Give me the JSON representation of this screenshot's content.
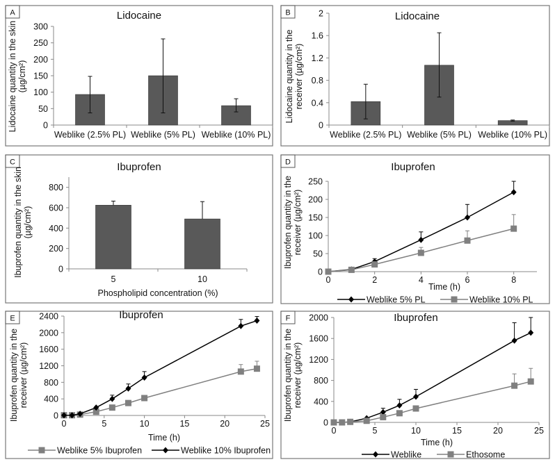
{
  "chart_data": [
    {
      "panel": "A",
      "type": "bar",
      "title": "Lidocaine",
      "ylabel": [
        "Lidocaine quantity in the skin",
        "(µg/cm²)"
      ],
      "xlabel": "",
      "ylim": [
        0,
        300
      ],
      "yticks": [
        "0",
        "50",
        "100",
        "150",
        "200",
        "250",
        "300"
      ],
      "categories": [
        "Weblike (2.5% PL)",
        "Weblike (5% PL)",
        "Weblike (10% PL)"
      ],
      "values": [
        93,
        150,
        59
      ],
      "err_low": [
        37,
        37,
        40
      ],
      "err_high": [
        148,
        262,
        80
      ],
      "bar_color": "#595959"
    },
    {
      "panel": "B",
      "type": "bar",
      "title": "Lidocaine",
      "ylabel": [
        "Lidocaine quantity in the",
        "receiver (µg/cm²)"
      ],
      "xlabel": "",
      "ylim": [
        0,
        2
      ],
      "yticks": [
        "0",
        "0.4",
        "0.8",
        "1.2",
        "1.6",
        "2"
      ],
      "categories": [
        "Weblike (2.5% PL)",
        "Weblike (5% PL)",
        "Weblike (10% PL)"
      ],
      "values": [
        0.42,
        1.07,
        0.08
      ],
      "err_low": [
        0.11,
        0.5,
        0.07
      ],
      "err_high": [
        0.73,
        1.65,
        0.09
      ],
      "bar_color": "#595959"
    },
    {
      "panel": "C",
      "type": "bar",
      "title": "Ibuprofen",
      "ylabel": [
        "Ibuprofen quantity in the skin",
        "(µg/cm²)"
      ],
      "xlabel": "Phospholipid concentration (%)",
      "ylim": [
        0,
        900
      ],
      "yticks": [
        "0",
        "200",
        "400",
        "600",
        "800"
      ],
      "categories": [
        "5",
        "10"
      ],
      "values": [
        625,
        490
      ],
      "err_low": [
        625,
        490
      ],
      "err_high": [
        665,
        660
      ],
      "bar_color": "#595959"
    },
    {
      "panel": "D",
      "type": "line",
      "title": "Ibuprofen",
      "ylabel": [
        "Ibuprofen quantity in the",
        "receiver (µg/cm²)"
      ],
      "xlabel": "Time (h)",
      "xlim": [
        0,
        9
      ],
      "ylim": [
        0,
        250
      ],
      "xticks": [
        "0",
        "2",
        "4",
        "6",
        "8"
      ],
      "yticks": [
        "0",
        "50",
        "100",
        "150",
        "200",
        "250"
      ],
      "series": [
        {
          "name": "Weblike 5% PL",
          "marker": "diamond",
          "color": "#000000",
          "x": [
            0,
            1,
            2,
            4,
            6,
            8
          ],
          "y": [
            0,
            6,
            28,
            88,
            150,
            220
          ],
          "err_high": [
            0,
            6,
            36,
            110,
            186,
            250
          ]
        },
        {
          "name": "Weblike 10% PL",
          "marker": "square",
          "color": "#808080",
          "x": [
            0,
            1,
            2,
            4,
            6,
            8
          ],
          "y": [
            0,
            5,
            20,
            52,
            86,
            119
          ],
          "err_high": [
            0,
            5,
            20,
            67,
            113,
            158
          ]
        }
      ]
    },
    {
      "panel": "E",
      "type": "line",
      "title": "Ibuprofen",
      "ylabel": [
        "Ibuprofen quantity in the",
        "receiver (µg/cm²)"
      ],
      "xlabel": "Time (h)",
      "xlim": [
        0,
        25
      ],
      "ylim": [
        0,
        2400
      ],
      "xticks": [
        "0",
        "5",
        "10",
        "15",
        "20",
        "25"
      ],
      "yticks": [
        "0",
        "400",
        "800",
        "1200",
        "1600",
        "2000",
        "2400"
      ],
      "series": [
        {
          "name": "Weblike 5% Ibuprofen",
          "marker": "square",
          "color": "#808080",
          "x": [
            0,
            1,
            2,
            4,
            6,
            8,
            10,
            22,
            24
          ],
          "y": [
            5,
            5,
            20,
            90,
            190,
            300,
            420,
            1060,
            1130
          ],
          "err_high": [
            5,
            5,
            20,
            90,
            190,
            300,
            420,
            1230,
            1310
          ]
        },
        {
          "name": "Weblike 10% Ibuprofen",
          "marker": "diamond",
          "color": "#000000",
          "x": [
            0,
            1,
            2,
            4,
            6,
            8,
            10,
            22,
            24
          ],
          "y": [
            5,
            5,
            40,
            190,
            400,
            650,
            915,
            2160,
            2290
          ],
          "err_high": [
            5,
            5,
            40,
            190,
            490,
            760,
            1060,
            2320,
            2390
          ]
        }
      ]
    },
    {
      "panel": "F",
      "type": "line",
      "title": "Ibuprofen",
      "ylabel": [
        "Ibuprofen quantity in the",
        "receiver (µg/cm²)"
      ],
      "xlabel": "Time (h)",
      "xlim": [
        0,
        25
      ],
      "ylim": [
        0,
        2000
      ],
      "xticks": [
        "0",
        "5",
        "10",
        "15",
        "20",
        "25"
      ],
      "yticks": [
        "0",
        "400",
        "800",
        "1200",
        "1600",
        "2000"
      ],
      "series": [
        {
          "name": "Weblike",
          "marker": "diamond",
          "color": "#000000",
          "x": [
            0,
            1,
            2,
            4,
            6,
            8,
            10,
            22,
            24
          ],
          "y": [
            0,
            0,
            10,
            80,
            195,
            325,
            490,
            1560,
            1710
          ],
          "err_high": [
            0,
            0,
            10,
            80,
            270,
            440,
            630,
            1900,
            2000
          ]
        },
        {
          "name": "Ethosome",
          "marker": "square",
          "color": "#808080",
          "x": [
            0,
            1,
            2,
            4,
            6,
            8,
            10,
            22,
            24
          ],
          "y": [
            0,
            0,
            10,
            30,
            100,
            175,
            265,
            700,
            780
          ],
          "err_high": [
            0,
            0,
            10,
            30,
            100,
            175,
            265,
            925,
            1030
          ]
        }
      ]
    }
  ]
}
